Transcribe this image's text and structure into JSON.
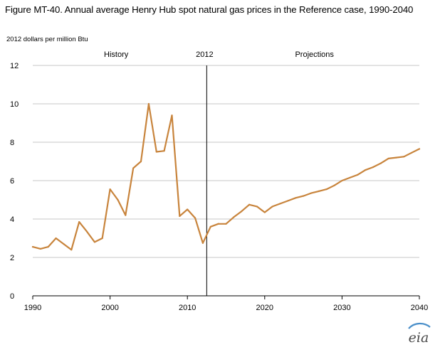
{
  "title": "Figure MT-40. Annual average Henry Hub spot natural gas prices in the Reference case, 1990-2040",
  "logo_text": "eia",
  "chart_data": {
    "type": "line",
    "title": "Figure MT-40. Annual average Henry Hub spot natural gas prices in the Reference case, 1990-2040",
    "ylabel": "2012 dollars per million Btu",
    "xlabel": "",
    "xlim": [
      1990,
      2040
    ],
    "ylim": [
      0,
      12
    ],
    "x_ticks": [
      1990,
      2000,
      2010,
      2020,
      2030,
      2040
    ],
    "y_ticks": [
      0,
      2,
      4,
      6,
      8,
      10,
      12
    ],
    "grid": "horizontal",
    "legend": "none",
    "color": "#c8843c",
    "annotations": {
      "divider_year": 2012.5,
      "divider_label": "2012",
      "history_label": "History",
      "projections_label": "Projections"
    },
    "x": [
      1990,
      1991,
      1992,
      1993,
      1994,
      1995,
      1996,
      1997,
      1998,
      1999,
      2000,
      2001,
      2002,
      2003,
      2004,
      2005,
      2006,
      2007,
      2008,
      2009,
      2010,
      2011,
      2012,
      2013,
      2014,
      2015,
      2016,
      2017,
      2018,
      2019,
      2020,
      2021,
      2022,
      2023,
      2024,
      2025,
      2026,
      2027,
      2028,
      2029,
      2030,
      2031,
      2032,
      2033,
      2034,
      2035,
      2036,
      2037,
      2038,
      2039,
      2040
    ],
    "values": [
      2.55,
      2.45,
      2.55,
      3.0,
      2.7,
      2.4,
      3.85,
      3.35,
      2.8,
      3.0,
      5.55,
      5.0,
      4.2,
      6.65,
      7.0,
      10.0,
      7.5,
      7.55,
      9.4,
      4.15,
      4.5,
      4.05,
      2.75,
      3.6,
      3.75,
      3.75,
      4.1,
      4.4,
      4.75,
      4.65,
      4.35,
      4.65,
      4.8,
      4.95,
      5.1,
      5.2,
      5.35,
      5.45,
      5.55,
      5.75,
      6.0,
      6.15,
      6.3,
      6.55,
      6.7,
      6.9,
      7.15,
      7.2,
      7.25,
      7.45,
      7.65
    ]
  }
}
